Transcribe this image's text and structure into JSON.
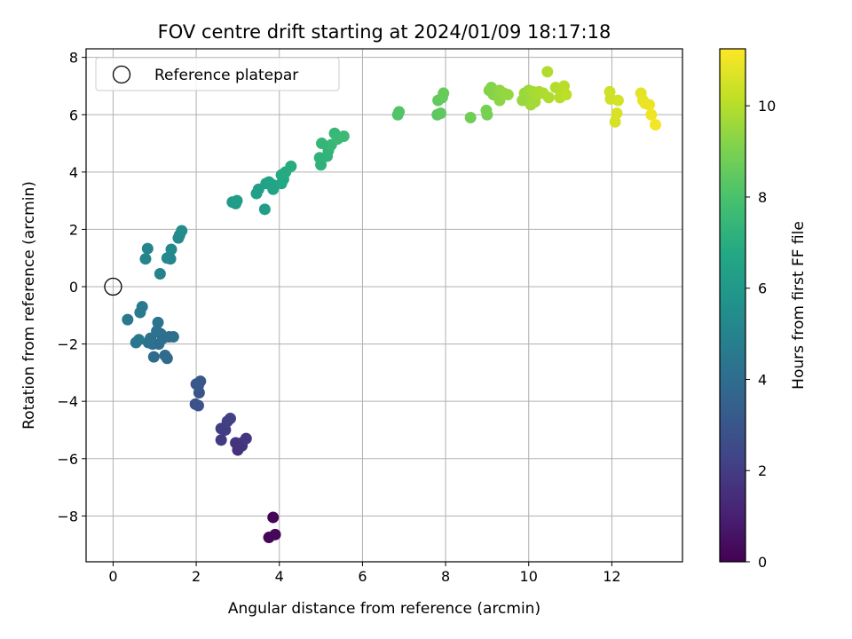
{
  "chart_data": {
    "type": "scatter",
    "title": "FOV centre drift starting at 2024/01/09 18:17:18",
    "xlabel": "Angular distance from reference (arcmin)",
    "ylabel": "Rotation from reference (arcmin)",
    "xlim": [
      -0.65,
      13.7
    ],
    "ylim": [
      -9.6,
      8.3
    ],
    "xticks": [
      0,
      2,
      4,
      6,
      8,
      10,
      12
    ],
    "yticks": [
      -8,
      -6,
      -4,
      -2,
      0,
      2,
      4,
      6,
      8
    ],
    "grid": true,
    "legend": {
      "placement": "top-left",
      "entries": [
        "Reference platepar"
      ]
    },
    "reference_point": {
      "x": 0,
      "y": 0,
      "label": "Reference platepar"
    },
    "colorbar": {
      "label": "Hours from first FF file",
      "colormap": "viridis",
      "range": [
        0,
        11.25
      ],
      "ticks": [
        0,
        2,
        4,
        6,
        8,
        10
      ]
    },
    "series": [
      {
        "points": [
          {
            "x": 3.85,
            "y": -8.05,
            "c": 0.1
          },
          {
            "x": 3.75,
            "y": -8.75,
            "c": 0.15
          },
          {
            "x": 3.9,
            "y": -8.65,
            "c": 0.2
          },
          {
            "x": 3.0,
            "y": -5.7,
            "c": 1.6
          },
          {
            "x": 3.1,
            "y": -5.55,
            "c": 1.65
          },
          {
            "x": 2.95,
            "y": -5.45,
            "c": 1.7
          },
          {
            "x": 3.1,
            "y": -5.45,
            "c": 1.7
          },
          {
            "x": 3.2,
            "y": -5.3,
            "c": 1.75
          },
          {
            "x": 2.6,
            "y": -5.35,
            "c": 1.9
          },
          {
            "x": 2.7,
            "y": -5.0,
            "c": 2.0
          },
          {
            "x": 2.6,
            "y": -4.95,
            "c": 2.05
          },
          {
            "x": 2.75,
            "y": -4.7,
            "c": 2.1
          },
          {
            "x": 2.82,
            "y": -4.6,
            "c": 2.15
          },
          {
            "x": 1.98,
            "y": -4.1,
            "c": 2.8
          },
          {
            "x": 2.05,
            "y": -4.15,
            "c": 2.85
          },
          {
            "x": 2.07,
            "y": -3.7,
            "c": 2.9
          },
          {
            "x": 2.0,
            "y": -3.4,
            "c": 3.0
          },
          {
            "x": 2.1,
            "y": -3.3,
            "c": 3.05
          },
          {
            "x": 2.05,
            "y": -3.45,
            "c": 3.1
          },
          {
            "x": 1.3,
            "y": -2.5,
            "c": 3.8
          },
          {
            "x": 1.25,
            "y": -2.4,
            "c": 3.85
          },
          {
            "x": 0.98,
            "y": -2.45,
            "c": 3.9
          },
          {
            "x": 1.1,
            "y": -2.0,
            "c": 4.0
          },
          {
            "x": 0.95,
            "y": -2.0,
            "c": 4.0
          },
          {
            "x": 1.2,
            "y": -1.8,
            "c": 4.05
          },
          {
            "x": 1.35,
            "y": -1.75,
            "c": 4.1
          },
          {
            "x": 1.45,
            "y": -1.75,
            "c": 4.1
          },
          {
            "x": 1.15,
            "y": -1.65,
            "c": 4.15
          },
          {
            "x": 1.05,
            "y": -1.55,
            "c": 4.2
          },
          {
            "x": 0.9,
            "y": -1.8,
            "c": 4.2
          },
          {
            "x": 0.85,
            "y": -1.95,
            "c": 4.25
          },
          {
            "x": 1.08,
            "y": -1.25,
            "c": 4.3
          },
          {
            "x": 0.55,
            "y": -1.95,
            "c": 4.4
          },
          {
            "x": 0.62,
            "y": -1.85,
            "c": 4.45
          },
          {
            "x": 0.35,
            "y": -1.15,
            "c": 4.5
          },
          {
            "x": 0.65,
            "y": -0.9,
            "c": 4.55
          },
          {
            "x": 0.7,
            "y": -0.7,
            "c": 4.6
          },
          {
            "x": 1.13,
            "y": 0.45,
            "c": 5.0
          },
          {
            "x": 0.78,
            "y": 0.97,
            "c": 5.05
          },
          {
            "x": 0.83,
            "y": 1.33,
            "c": 5.1
          },
          {
            "x": 1.38,
            "y": 0.97,
            "c": 5.15
          },
          {
            "x": 1.3,
            "y": 1.0,
            "c": 5.2
          },
          {
            "x": 1.4,
            "y": 1.3,
            "c": 5.25
          },
          {
            "x": 1.57,
            "y": 1.7,
            "c": 5.3
          },
          {
            "x": 1.6,
            "y": 1.8,
            "c": 5.35
          },
          {
            "x": 1.65,
            "y": 1.95,
            "c": 5.4
          },
          {
            "x": 2.87,
            "y": 2.95,
            "c": 6.1
          },
          {
            "x": 2.95,
            "y": 2.9,
            "c": 6.15
          },
          {
            "x": 2.98,
            "y": 3.0,
            "c": 6.2
          },
          {
            "x": 3.65,
            "y": 2.7,
            "c": 6.25
          },
          {
            "x": 3.45,
            "y": 3.25,
            "c": 6.3
          },
          {
            "x": 3.5,
            "y": 3.4,
            "c": 6.35
          },
          {
            "x": 3.68,
            "y": 3.6,
            "c": 6.4
          },
          {
            "x": 3.75,
            "y": 3.65,
            "c": 6.45
          },
          {
            "x": 3.85,
            "y": 3.4,
            "c": 6.5
          },
          {
            "x": 3.85,
            "y": 3.55,
            "c": 6.55
          },
          {
            "x": 4.05,
            "y": 3.6,
            "c": 6.7
          },
          {
            "x": 4.1,
            "y": 3.75,
            "c": 6.75
          },
          {
            "x": 4.05,
            "y": 3.9,
            "c": 6.8
          },
          {
            "x": 4.15,
            "y": 4.0,
            "c": 6.85
          },
          {
            "x": 4.28,
            "y": 4.2,
            "c": 6.9
          },
          {
            "x": 5.0,
            "y": 4.25,
            "c": 7.2
          },
          {
            "x": 4.97,
            "y": 4.5,
            "c": 7.25
          },
          {
            "x": 5.15,
            "y": 4.55,
            "c": 7.3
          },
          {
            "x": 5.18,
            "y": 4.75,
            "c": 7.35
          },
          {
            "x": 5.02,
            "y": 5.0,
            "c": 7.4
          },
          {
            "x": 5.25,
            "y": 4.95,
            "c": 7.45
          },
          {
            "x": 5.33,
            "y": 5.35,
            "c": 7.5
          },
          {
            "x": 5.4,
            "y": 5.15,
            "c": 7.55
          },
          {
            "x": 5.55,
            "y": 5.25,
            "c": 7.6
          },
          {
            "x": 6.85,
            "y": 6.0,
            "c": 8.1
          },
          {
            "x": 6.88,
            "y": 6.1,
            "c": 8.15
          },
          {
            "x": 7.8,
            "y": 6.0,
            "c": 8.4
          },
          {
            "x": 7.88,
            "y": 6.05,
            "c": 8.45
          },
          {
            "x": 7.82,
            "y": 6.5,
            "c": 8.5
          },
          {
            "x": 7.92,
            "y": 6.6,
            "c": 8.55
          },
          {
            "x": 7.95,
            "y": 6.75,
            "c": 8.6
          },
          {
            "x": 8.6,
            "y": 5.9,
            "c": 8.8
          },
          {
            "x": 9.0,
            "y": 6.0,
            "c": 8.9
          },
          {
            "x": 8.98,
            "y": 6.15,
            "c": 8.95
          },
          {
            "x": 9.05,
            "y": 6.85,
            "c": 9.1
          },
          {
            "x": 9.1,
            "y": 6.95,
            "c": 9.15
          },
          {
            "x": 9.15,
            "y": 6.7,
            "c": 9.2
          },
          {
            "x": 9.25,
            "y": 6.65,
            "c": 9.25
          },
          {
            "x": 9.3,
            "y": 6.5,
            "c": 9.3
          },
          {
            "x": 9.3,
            "y": 6.85,
            "c": 9.35
          },
          {
            "x": 9.4,
            "y": 6.75,
            "c": 9.4
          },
          {
            "x": 9.5,
            "y": 6.7,
            "c": 9.45
          },
          {
            "x": 9.85,
            "y": 6.5,
            "c": 9.5
          },
          {
            "x": 9.9,
            "y": 6.75,
            "c": 9.55
          },
          {
            "x": 10.0,
            "y": 6.85,
            "c": 9.6
          },
          {
            "x": 10.05,
            "y": 6.6,
            "c": 9.6
          },
          {
            "x": 10.05,
            "y": 6.35,
            "c": 9.65
          },
          {
            "x": 10.15,
            "y": 6.45,
            "c": 9.7
          },
          {
            "x": 10.1,
            "y": 6.8,
            "c": 9.7
          },
          {
            "x": 10.2,
            "y": 6.7,
            "c": 9.75
          },
          {
            "x": 10.25,
            "y": 6.8,
            "c": 9.8
          },
          {
            "x": 10.35,
            "y": 6.75,
            "c": 9.85
          },
          {
            "x": 10.45,
            "y": 7.5,
            "c": 9.9
          },
          {
            "x": 10.48,
            "y": 6.6,
            "c": 9.9
          },
          {
            "x": 10.65,
            "y": 6.95,
            "c": 9.95
          },
          {
            "x": 10.75,
            "y": 6.6,
            "c": 10.0
          },
          {
            "x": 10.8,
            "y": 6.75,
            "c": 10.0
          },
          {
            "x": 10.85,
            "y": 7.0,
            "c": 10.05
          },
          {
            "x": 10.9,
            "y": 6.7,
            "c": 10.1
          },
          {
            "x": 11.95,
            "y": 6.8,
            "c": 10.4
          },
          {
            "x": 11.97,
            "y": 6.55,
            "c": 10.45
          },
          {
            "x": 12.15,
            "y": 6.5,
            "c": 10.5
          },
          {
            "x": 12.08,
            "y": 5.75,
            "c": 10.55
          },
          {
            "x": 12.12,
            "y": 6.05,
            "c": 10.6
          },
          {
            "x": 12.7,
            "y": 6.75,
            "c": 10.8
          },
          {
            "x": 12.75,
            "y": 6.5,
            "c": 10.85
          },
          {
            "x": 12.8,
            "y": 6.4,
            "c": 10.9
          },
          {
            "x": 12.9,
            "y": 6.35,
            "c": 10.95
          },
          {
            "x": 12.95,
            "y": 6.0,
            "c": 11.0
          },
          {
            "x": 13.05,
            "y": 5.65,
            "c": 11.05
          }
        ]
      }
    ]
  }
}
